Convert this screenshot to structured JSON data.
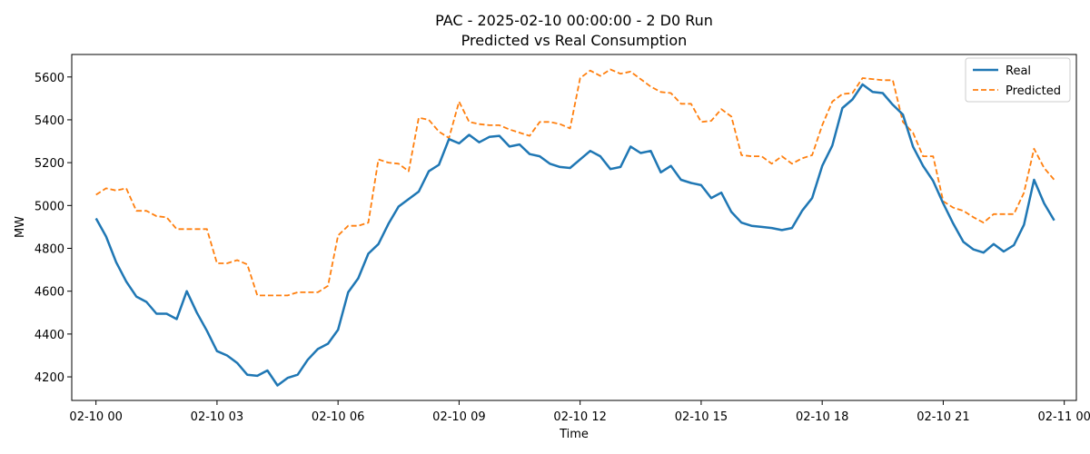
{
  "chart_data": {
    "type": "line",
    "title_line1": "PAC - 2025-02-10 00:00:00 - 2 D0 Run",
    "title_line2": "Predicted vs Real Consumption",
    "xlabel": "Time",
    "ylabel": "MW",
    "x_ticks": [
      "02-10 00",
      "02-10 03",
      "02-10 06",
      "02-10 09",
      "02-10 12",
      "02-10 15",
      "02-10 18",
      "02-10 21",
      "02-11 00"
    ],
    "y_ticks": [
      4200,
      4400,
      4600,
      4800,
      5000,
      5200,
      5400,
      5600
    ],
    "x_range_hours": [
      -0.6,
      24.3
    ],
    "ylim": [
      4090,
      5705
    ],
    "grid": false,
    "legend_position": "top-right",
    "colors": {
      "real": "#1f77b4",
      "predicted": "#ff7f0e"
    },
    "series": [
      {
        "name": "Real",
        "style": "solid",
        "x_hours": [
          0,
          0.25,
          0.5,
          0.75,
          1,
          1.25,
          1.5,
          1.75,
          2,
          2.25,
          2.5,
          2.75,
          3,
          3.25,
          3.5,
          3.75,
          4,
          4.25,
          4.5,
          4.75,
          5,
          5.25,
          5.5,
          5.75,
          6,
          6.25,
          6.5,
          6.75,
          7,
          7.25,
          7.5,
          7.75,
          8,
          8.25,
          8.5,
          8.75,
          9,
          9.25,
          9.5,
          9.75,
          10,
          10.25,
          10.5,
          10.75,
          11,
          11.25,
          11.5,
          11.75,
          12,
          12.25,
          12.5,
          12.75,
          13,
          13.25,
          13.5,
          13.75,
          14,
          14.25,
          14.5,
          14.75,
          15,
          15.25,
          15.5,
          15.75,
          16,
          16.25,
          16.5,
          16.75,
          17,
          17.25,
          17.5,
          17.75,
          18,
          18.25,
          18.5,
          18.75,
          19,
          19.25,
          19.5,
          19.75,
          20,
          20.25,
          20.5,
          20.75,
          21,
          21.25,
          21.5,
          21.75,
          22,
          22.25,
          22.5,
          22.75,
          23,
          23.25,
          23.5,
          23.75
        ],
        "values": [
          4940,
          4855,
          4735,
          4645,
          4575,
          4550,
          4495,
          4495,
          4470,
          4600,
          4500,
          4415,
          4320,
          4300,
          4265,
          4210,
          4205,
          4230,
          4160,
          4195,
          4210,
          4280,
          4330,
          4355,
          4420,
          4595,
          4660,
          4775,
          4820,
          4915,
          4995,
          5030,
          5065,
          5160,
          5190,
          5310,
          5290,
          5330,
          5295,
          5320,
          5325,
          5275,
          5285,
          5240,
          5230,
          5195,
          5180,
          5175,
          5215,
          5255,
          5230,
          5170,
          5180,
          5275,
          5245,
          5255,
          5155,
          5185,
          5120,
          5105,
          5095,
          5035,
          5060,
          4970,
          4920,
          4905,
          4900,
          4895,
          4885,
          4895,
          4975,
          5035,
          5185,
          5280,
          5455,
          5495,
          5565,
          5530,
          5525,
          5470,
          5425,
          5275,
          5185,
          5115,
          5010,
          4915,
          4830,
          4795,
          4780,
          4820,
          4785,
          4815,
          4910,
          5120,
          5010,
          4930
        ]
      },
      {
        "name": "Predicted",
        "style": "dashed",
        "x_hours": [
          0,
          0.25,
          0.5,
          0.75,
          1,
          1.25,
          1.5,
          1.75,
          2,
          2.25,
          2.5,
          2.75,
          3,
          3.25,
          3.5,
          3.75,
          4,
          4.25,
          4.5,
          4.75,
          5,
          5.25,
          5.5,
          5.75,
          6,
          6.25,
          6.5,
          6.75,
          7,
          7.25,
          7.5,
          7.75,
          8,
          8.25,
          8.5,
          8.75,
          9,
          9.25,
          9.5,
          9.75,
          10,
          10.25,
          10.5,
          10.75,
          11,
          11.25,
          11.5,
          11.75,
          12,
          12.25,
          12.5,
          12.75,
          13,
          13.25,
          13.5,
          13.75,
          14,
          14.25,
          14.5,
          14.75,
          15,
          15.25,
          15.5,
          15.75,
          16,
          16.25,
          16.5,
          16.75,
          17,
          17.25,
          17.5,
          17.75,
          18,
          18.25,
          18.5,
          18.75,
          19,
          19.25,
          19.5,
          19.75,
          20,
          20.25,
          20.5,
          20.75,
          21,
          21.25,
          21.5,
          21.75,
          22,
          22.25,
          22.5,
          22.75,
          23,
          23.25,
          23.5,
          23.75
        ],
        "values": [
          5050,
          5080,
          5070,
          5080,
          4975,
          4975,
          4950,
          4945,
          4890,
          4890,
          4890,
          4890,
          4730,
          4730,
          4745,
          4725,
          4580,
          4580,
          4580,
          4580,
          4595,
          4595,
          4595,
          4625,
          4860,
          4905,
          4905,
          4920,
          5215,
          5200,
          5195,
          5160,
          5410,
          5400,
          5345,
          5315,
          5485,
          5390,
          5380,
          5375,
          5375,
          5355,
          5340,
          5325,
          5390,
          5390,
          5380,
          5360,
          5595,
          5630,
          5605,
          5635,
          5615,
          5625,
          5590,
          5555,
          5530,
          5525,
          5475,
          5475,
          5390,
          5395,
          5450,
          5415,
          5235,
          5230,
          5230,
          5195,
          5230,
          5195,
          5220,
          5235,
          5375,
          5485,
          5520,
          5525,
          5595,
          5590,
          5585,
          5585,
          5390,
          5340,
          5230,
          5230,
          5020,
          4990,
          4975,
          4945,
          4920,
          4960,
          4960,
          4960,
          5060,
          5265,
          5175,
          5120
        ]
      }
    ]
  }
}
